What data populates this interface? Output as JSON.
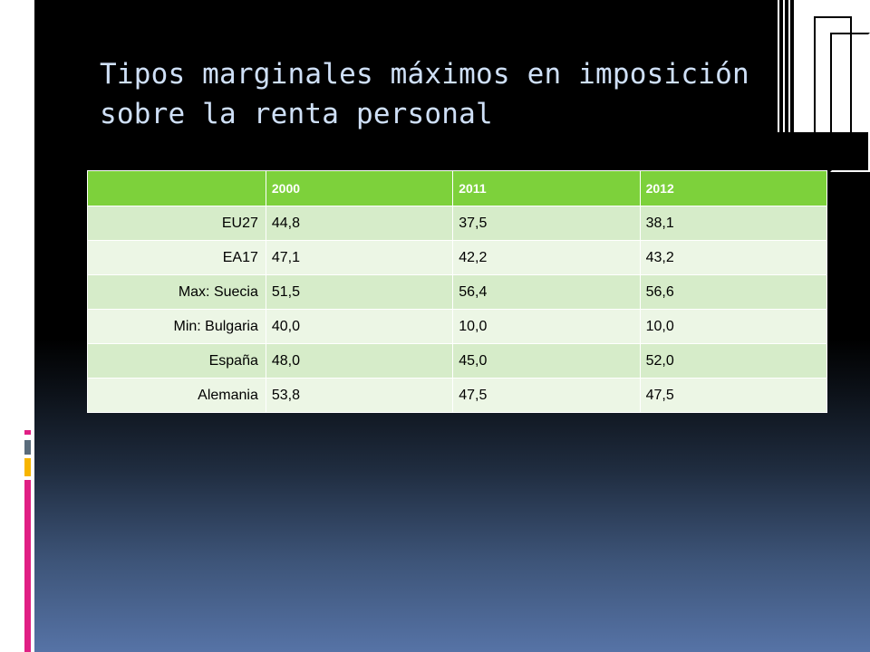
{
  "slide": {
    "title": "Tipos marginales máximos en imposición sobre la renta personal"
  },
  "table": {
    "header_corner": "",
    "years": [
      "2000",
      "2011",
      "2012"
    ],
    "rows": [
      {
        "label": "EU27",
        "values": [
          "44,8",
          "37,5",
          "38,1"
        ]
      },
      {
        "label": "EA17",
        "values": [
          "47,1",
          "42,2",
          "43,2"
        ]
      },
      {
        "label": "Max:  Suecia",
        "values": [
          "51,5",
          "56,4",
          "56,6"
        ]
      },
      {
        "label": "Min: Bulgaria",
        "values": [
          "40,0",
          "10,0",
          "10,0"
        ]
      },
      {
        "label": "España",
        "values": [
          "48,0",
          "45,0",
          "52,0"
        ]
      },
      {
        "label": "Alemania",
        "values": [
          "53,8",
          "47,5",
          "47,5"
        ]
      }
    ]
  },
  "colors": {
    "header_green": "#7dd13b",
    "row_dark": "#d6ecc9",
    "row_light": "#ecf6e5",
    "title_text": "#cfe0f7",
    "accent_magenta": "#e01f84",
    "accent_yellow": "#f7b500"
  }
}
